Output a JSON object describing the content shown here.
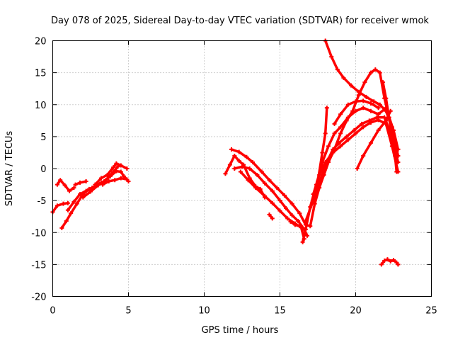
{
  "chart_data": {
    "type": "scatter",
    "title": "Day 078 of 2025, Sidereal Day-to-day VTEC variation (SDTVAR) for receiver wmok",
    "xlabel": "GPS time / hours",
    "ylabel": "SDTVAR / TECUs",
    "xlim": [
      0,
      25
    ],
    "ylim": [
      -20,
      20
    ],
    "xticks": [
      0,
      5,
      10,
      15,
      20,
      25
    ],
    "yticks": [
      -20,
      -15,
      -10,
      -5,
      0,
      5,
      10,
      15,
      20
    ],
    "grid": true,
    "legend": "none",
    "color": "#ff0000",
    "series": [
      {
        "points": [
          [
            0.0,
            -6.8
          ],
          [
            0.3,
            -5.8
          ],
          [
            0.7,
            -5.5
          ],
          [
            1.0,
            -5.4
          ]
        ]
      },
      {
        "points": [
          [
            0.3,
            -2.5
          ],
          [
            0.5,
            -1.8
          ],
          [
            0.8,
            -2.6
          ],
          [
            1.1,
            -3.5
          ],
          [
            1.4,
            -3.0
          ]
        ]
      },
      {
        "points": [
          [
            0.6,
            -9.3
          ],
          [
            0.9,
            -8.2
          ],
          [
            1.2,
            -7.0
          ],
          [
            1.6,
            -5.5
          ],
          [
            2.0,
            -4.0
          ],
          [
            2.4,
            -3.2
          ],
          [
            2.8,
            -2.8
          ],
          [
            3.2,
            -2.2
          ]
        ]
      },
      {
        "points": [
          [
            1.0,
            -6.5
          ],
          [
            1.4,
            -5.2
          ],
          [
            1.8,
            -4.0
          ],
          [
            2.2,
            -3.5
          ],
          [
            2.6,
            -3.0
          ],
          [
            3.0,
            -2.5
          ],
          [
            3.5,
            -1.8
          ],
          [
            4.0,
            -0.5
          ],
          [
            4.3,
            0.3
          ]
        ]
      },
      {
        "points": [
          [
            1.5,
            -2.5
          ],
          [
            1.8,
            -2.2
          ],
          [
            2.2,
            -2.0
          ]
        ]
      },
      {
        "points": [
          [
            2.0,
            -4.5
          ],
          [
            2.5,
            -3.6
          ],
          [
            3.0,
            -2.6
          ],
          [
            3.4,
            -2.0
          ],
          [
            3.8,
            -1.2
          ],
          [
            4.2,
            -0.4
          ],
          [
            4.5,
            -0.5
          ],
          [
            4.7,
            -1.2
          ],
          [
            5.0,
            -2.0
          ]
        ]
      },
      {
        "points": [
          [
            2.8,
            -2.5
          ],
          [
            3.2,
            -1.5
          ],
          [
            3.6,
            -1.0
          ],
          [
            4.0,
            0.2
          ],
          [
            4.2,
            0.8
          ],
          [
            4.5,
            0.5
          ],
          [
            4.9,
            0.0
          ]
        ]
      },
      {
        "points": [
          [
            3.3,
            -2.5
          ],
          [
            3.7,
            -2.0
          ],
          [
            4.1,
            -1.8
          ],
          [
            4.5,
            -1.5
          ],
          [
            4.9,
            -1.7
          ]
        ]
      },
      {
        "points": [
          [
            11.4,
            -0.8
          ],
          [
            11.7,
            0.6
          ],
          [
            12.0,
            2.0
          ],
          [
            12.3,
            1.2
          ],
          [
            12.6,
            0.6
          ],
          [
            13.0,
            -1.5
          ],
          [
            13.4,
            -2.8
          ],
          [
            13.7,
            -3.2
          ],
          [
            14.0,
            -4.5
          ]
        ]
      },
      {
        "points": [
          [
            11.8,
            3.0
          ],
          [
            12.3,
            2.6
          ],
          [
            12.8,
            1.8
          ],
          [
            13.2,
            1.0
          ],
          [
            13.8,
            -0.5
          ],
          [
            14.3,
            -1.8
          ],
          [
            14.8,
            -3.0
          ],
          [
            15.3,
            -4.2
          ],
          [
            15.8,
            -5.5
          ],
          [
            16.3,
            -7.0
          ],
          [
            16.7,
            -8.8
          ],
          [
            17.0,
            -9.0
          ],
          [
            17.3,
            -5.5
          ],
          [
            17.6,
            -3.0
          ],
          [
            17.9,
            -1.0
          ],
          [
            18.2,
            1.0
          ],
          [
            18.6,
            3.0
          ],
          [
            19.0,
            5.5
          ],
          [
            19.4,
            7.5
          ],
          [
            19.8,
            9.0
          ],
          [
            20.2,
            11.5
          ],
          [
            20.6,
            13.5
          ],
          [
            21.0,
            15.0
          ],
          [
            21.3,
            15.5
          ],
          [
            21.6,
            15.0
          ],
          [
            21.9,
            11.0
          ],
          [
            22.2,
            8.0
          ],
          [
            22.5,
            5.0
          ],
          [
            22.8,
            3.0
          ]
        ]
      },
      {
        "points": [
          [
            12.0,
            0.0
          ],
          [
            12.5,
            0.3
          ],
          [
            13.0,
            0.0
          ],
          [
            13.5,
            -1.0
          ],
          [
            14.0,
            -2.3
          ],
          [
            14.5,
            -3.5
          ],
          [
            15.0,
            -5.0
          ],
          [
            15.4,
            -6.2
          ],
          [
            15.8,
            -7.3
          ],
          [
            16.2,
            -8.2
          ],
          [
            16.6,
            -9.5
          ],
          [
            16.8,
            -10.5
          ]
        ]
      },
      {
        "points": [
          [
            12.4,
            -0.5
          ],
          [
            12.9,
            -1.8
          ],
          [
            13.4,
            -3.0
          ],
          [
            14.0,
            -4.3
          ],
          [
            14.5,
            -5.4
          ],
          [
            15.0,
            -6.6
          ],
          [
            15.5,
            -7.8
          ],
          [
            16.0,
            -8.6
          ],
          [
            16.4,
            -9.2
          ],
          [
            16.6,
            -11.0
          ]
        ]
      },
      {
        "points": [
          [
            14.3,
            -7.2
          ],
          [
            14.5,
            -7.8
          ]
        ]
      },
      {
        "points": [
          [
            15.7,
            -8.3
          ],
          [
            16.0,
            -8.8
          ],
          [
            16.3,
            -9.0
          ]
        ]
      },
      {
        "points": [
          [
            16.5,
            -11.5
          ],
          [
            16.7,
            -9.5
          ],
          [
            17.0,
            -6.0
          ],
          [
            17.4,
            -2.5
          ],
          [
            17.8,
            1.0
          ],
          [
            18.2,
            3.5
          ],
          [
            18.6,
            5.5
          ],
          [
            19.0,
            6.5
          ],
          [
            19.5,
            8.0
          ],
          [
            20.0,
            9.0
          ],
          [
            20.5,
            9.5
          ],
          [
            21.0,
            9.0
          ],
          [
            21.5,
            8.5
          ],
          [
            22.0,
            9.5
          ],
          [
            22.5,
            6.0
          ],
          [
            22.8,
            3.0
          ]
        ]
      },
      {
        "points": [
          [
            16.7,
            -8.2
          ],
          [
            17.2,
            -5.0
          ],
          [
            17.7,
            -1.5
          ],
          [
            18.1,
            1.0
          ],
          [
            18.5,
            3.0
          ],
          [
            18.9,
            4.0
          ],
          [
            19.4,
            5.0
          ],
          [
            19.9,
            6.0
          ],
          [
            20.4,
            7.0
          ],
          [
            20.9,
            7.5
          ],
          [
            21.4,
            8.0
          ],
          [
            21.9,
            8.0
          ],
          [
            22.4,
            5.0
          ],
          [
            22.8,
            1.0
          ]
        ]
      },
      {
        "points": [
          [
            17.2,
            -4.0
          ],
          [
            17.6,
            -1.0
          ],
          [
            18.0,
            1.0
          ],
          [
            18.5,
            2.5
          ],
          [
            19.0,
            3.5
          ],
          [
            19.5,
            4.5
          ],
          [
            20.0,
            5.5
          ],
          [
            20.5,
            6.5
          ],
          [
            21.0,
            7.2
          ],
          [
            21.5,
            7.6
          ],
          [
            22.0,
            7.0
          ],
          [
            22.4,
            3.5
          ],
          [
            22.8,
            -0.5
          ]
        ]
      },
      {
        "points": [
          [
            17.5,
            -2.0
          ],
          [
            17.8,
            2.5
          ],
          [
            18.0,
            5.5
          ],
          [
            18.1,
            9.5
          ]
        ]
      },
      {
        "points": [
          [
            18.0,
            20.0
          ],
          [
            18.4,
            17.5
          ],
          [
            18.8,
            15.5
          ],
          [
            19.2,
            14.2
          ],
          [
            19.7,
            13.0
          ],
          [
            20.2,
            12.0
          ],
          [
            20.7,
            11.2
          ],
          [
            21.2,
            10.5
          ],
          [
            21.6,
            10.0
          ],
          [
            22.0,
            9.0
          ],
          [
            22.4,
            6.5
          ],
          [
            22.8,
            2.0
          ]
        ]
      },
      {
        "points": [
          [
            18.6,
            7.0
          ],
          [
            19.0,
            8.5
          ],
          [
            19.5,
            10.0
          ],
          [
            20.0,
            10.5
          ],
          [
            20.5,
            10.6
          ],
          [
            21.0,
            10.2
          ],
          [
            21.5,
            9.5
          ]
        ]
      },
      {
        "points": [
          [
            20.1,
            0.0
          ],
          [
            20.5,
            2.0
          ],
          [
            21.0,
            4.0
          ],
          [
            21.5,
            6.0
          ],
          [
            22.0,
            7.5
          ],
          [
            22.3,
            9.0
          ]
        ]
      },
      {
        "points": [
          [
            21.8,
            13.5
          ],
          [
            22.0,
            11.0
          ],
          [
            22.2,
            8.0
          ],
          [
            22.4,
            5.0
          ],
          [
            22.6,
            2.0
          ],
          [
            22.7,
            -0.5
          ]
        ]
      },
      {
        "points": [
          [
            21.7,
            -15.0
          ],
          [
            21.9,
            -14.4
          ],
          [
            22.1,
            -14.2
          ],
          [
            22.3,
            -14.5
          ],
          [
            22.5,
            -14.3
          ],
          [
            22.7,
            -14.7
          ],
          [
            22.8,
            -15.0
          ]
        ]
      }
    ]
  }
}
